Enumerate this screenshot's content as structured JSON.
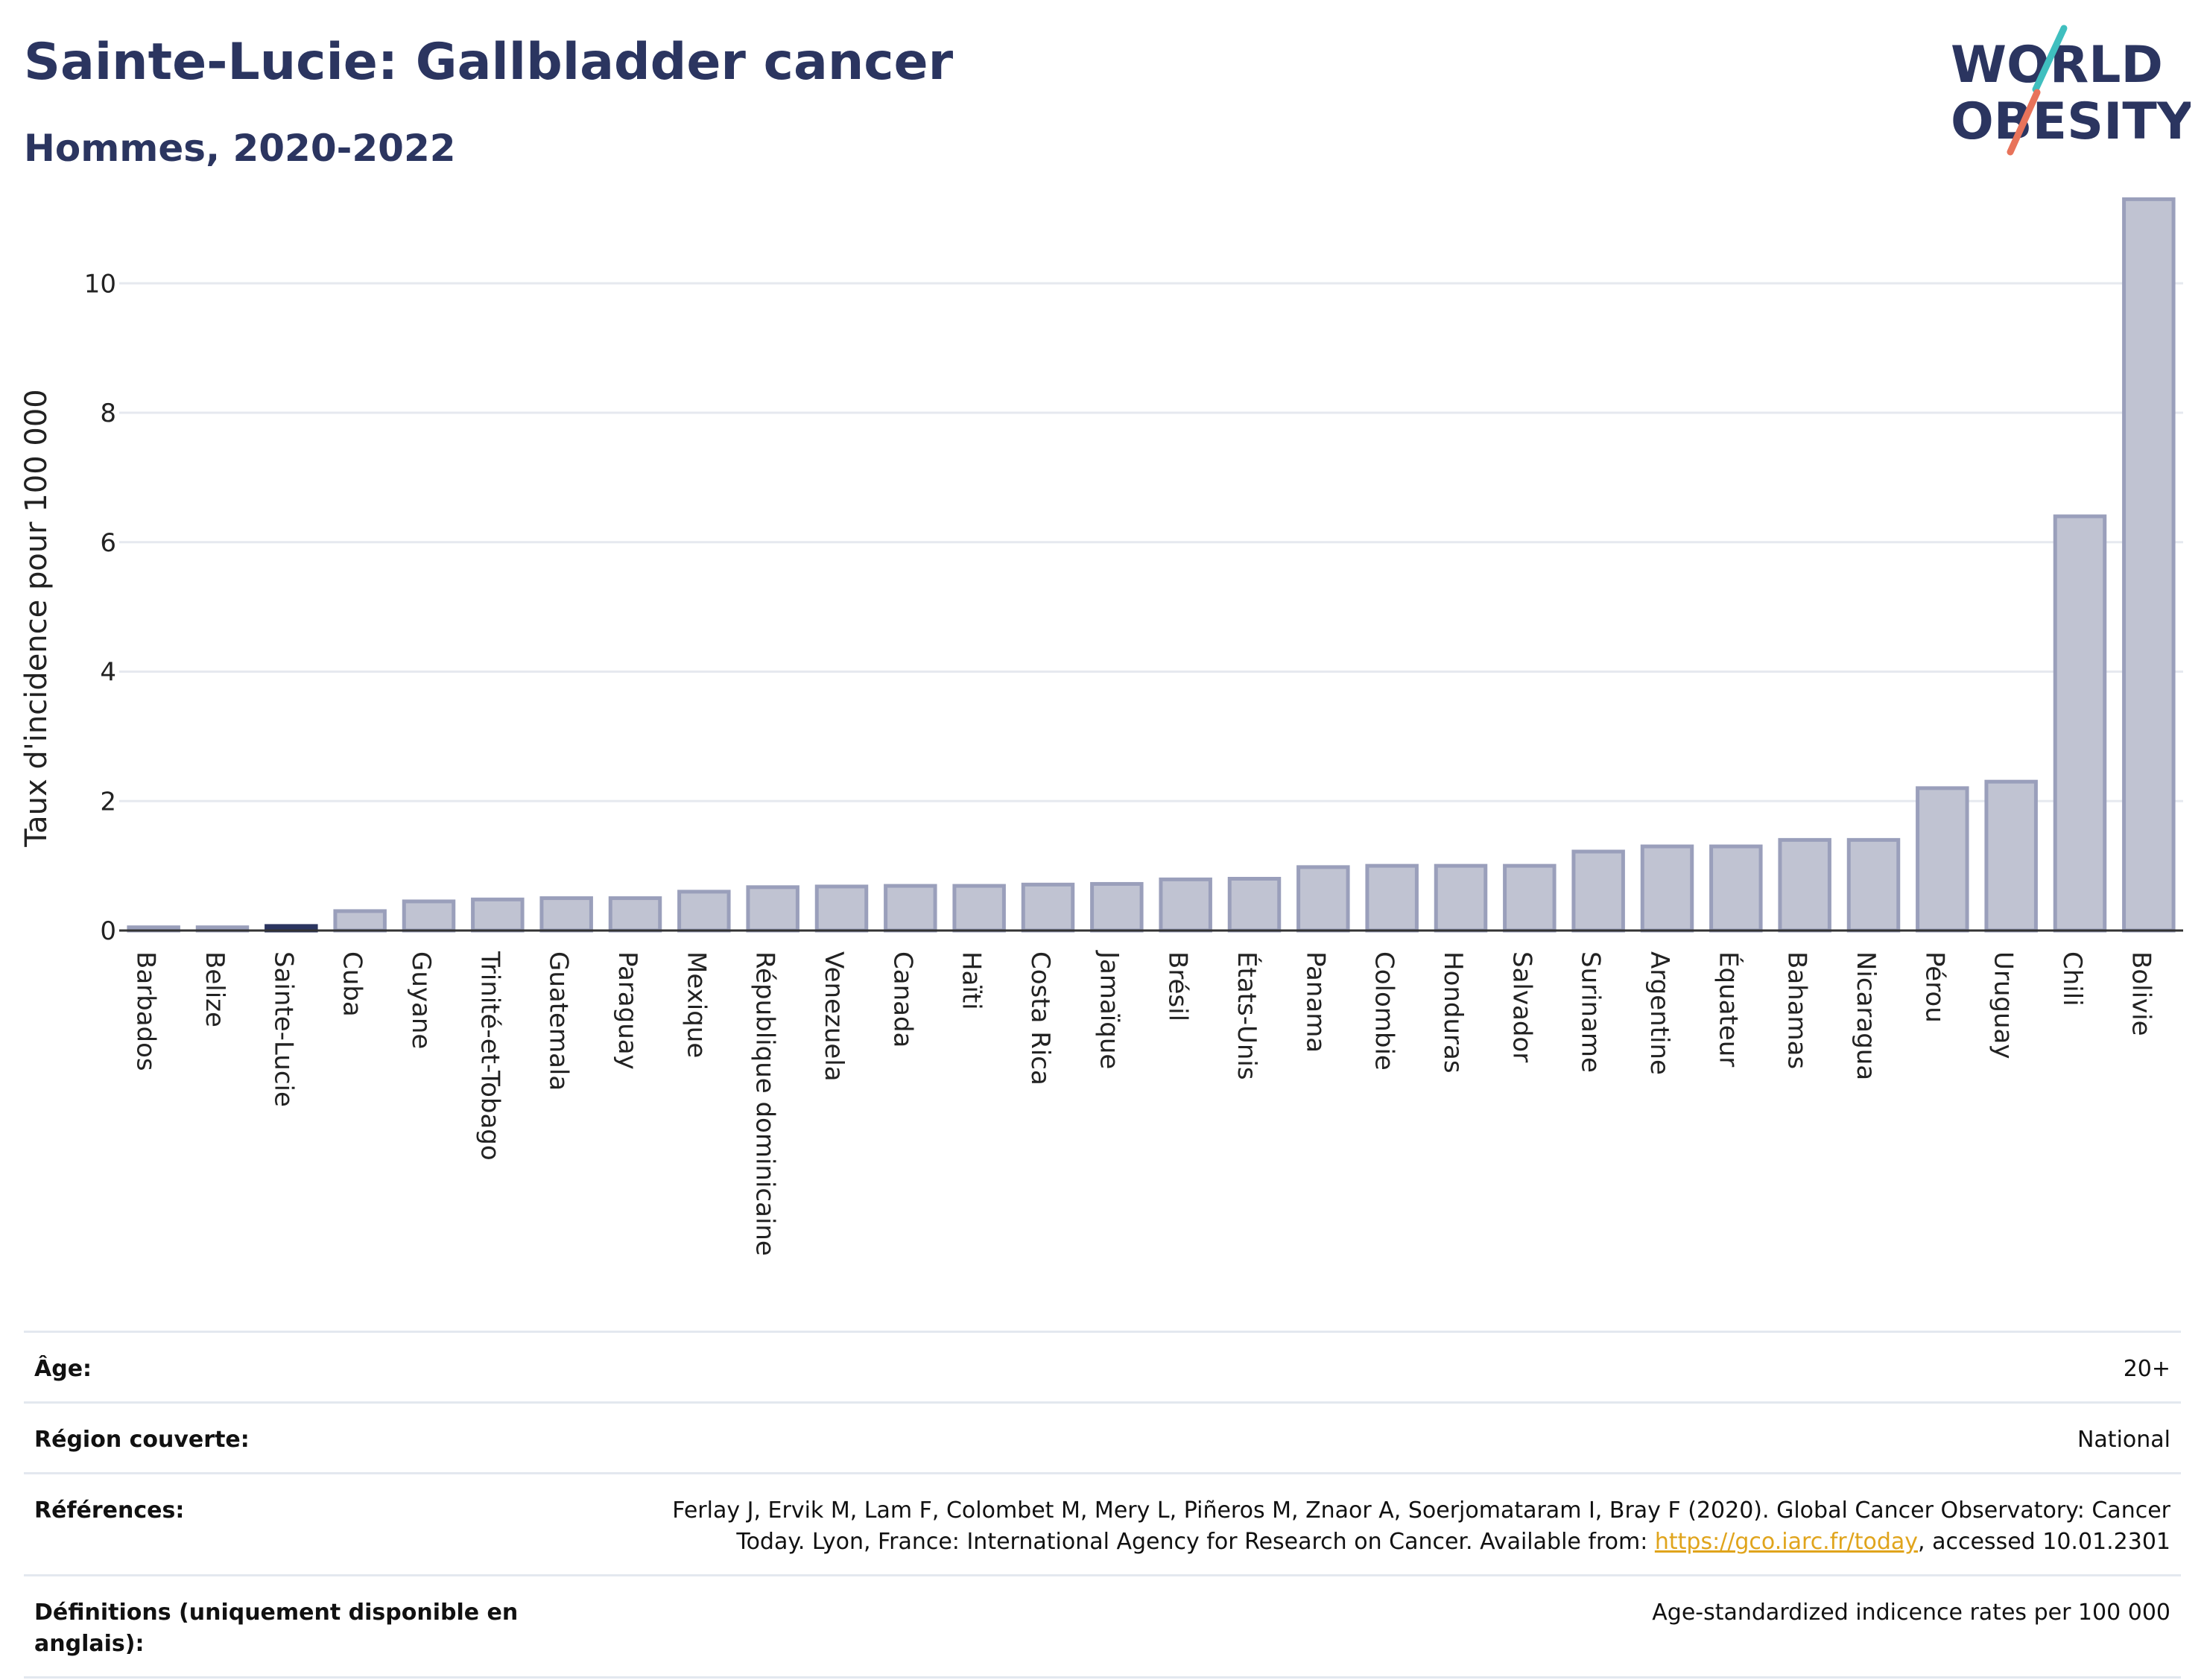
{
  "header": {
    "title": "Sainte-Lucie: Gallbladder cancer",
    "subtitle": "Hommes, 2020-2022"
  },
  "logo": {
    "line1": "WORLD",
    "line2": "OBESITY",
    "icon": "world-obesity-logo",
    "colors": {
      "text": "#2b3560",
      "accent_teal": "#3fbfbf",
      "accent_coral": "#e8735a"
    }
  },
  "colors": {
    "bar_fill": "#c0c3d2",
    "bar_stroke": "#9a9fbb",
    "highlight_bar": "#2b3560",
    "grid": "#e6e9ef",
    "axis_line": "#333333",
    "title": "#2b3560",
    "link": "#e0a41c"
  },
  "chart_data": {
    "type": "bar",
    "title": "Sainte-Lucie: Gallbladder cancer",
    "subtitle": "Hommes, 2020-2022",
    "xlabel": "",
    "ylabel": "Taux d'incidence pour 100 000",
    "ylim": [
      0,
      11.5
    ],
    "yticks": [
      0,
      2,
      4,
      6,
      8,
      10
    ],
    "grid": true,
    "highlight": "Sainte-Lucie",
    "categories": [
      "Barbados",
      "Belize",
      "Sainte-Lucie",
      "Cuba",
      "Guyane",
      "Trinité-et-Tobago",
      "Guatemala",
      "Paraguay",
      "Mexique",
      "République dominicaine",
      "Venezuela",
      "Canada",
      "Haïti",
      "Costa Rica",
      "Jamaïque",
      "Brésil",
      "États-Unis",
      "Panama",
      "Colombie",
      "Honduras",
      "Salvador",
      "Suriname",
      "Argentine",
      "Équateur",
      "Bahamas",
      "Nicaragua",
      "Pérou",
      "Uruguay",
      "Chili",
      "Bolivie"
    ],
    "values": [
      0.05,
      0.05,
      0.07,
      0.3,
      0.45,
      0.48,
      0.5,
      0.5,
      0.6,
      0.67,
      0.68,
      0.69,
      0.69,
      0.71,
      0.72,
      0.79,
      0.8,
      0.98,
      1.0,
      1.0,
      1.0,
      1.22,
      1.3,
      1.3,
      1.4,
      1.4,
      2.2,
      2.3,
      6.4,
      11.3
    ]
  },
  "info": {
    "rows": [
      {
        "label": "Âge:",
        "value": "20+"
      },
      {
        "label": "Région couverte:",
        "value": "National"
      },
      {
        "label": "Références:",
        "value_line1": "Ferlay J, Ervik M, Lam F, Colombet M, Mery L, Piñeros M, Znaor A, Soerjomataram I, Bray F (2020). Global Cancer Observatory: Cancer",
        "value_line2_pre": "Today. Lyon, France: International Agency for Research on Cancer. Available from: ",
        "link": "https://gco.iarc.fr/today",
        "value_line2_post": ", accessed 10.01.2301"
      },
      {
        "label": "Définitions (uniquement disponible en anglais):",
        "value": "Age-standardized indicence rates per 100 000"
      }
    ]
  }
}
